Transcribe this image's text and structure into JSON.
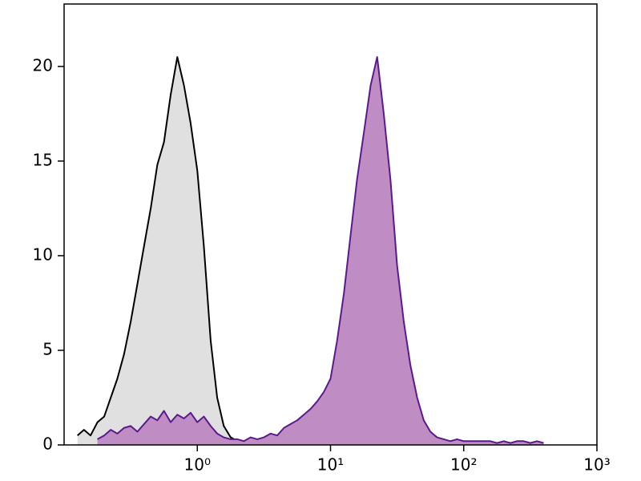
{
  "chart_data": {
    "type": "histogram-line",
    "x": [
      0.126,
      0.141,
      0.158,
      0.178,
      0.2,
      0.224,
      0.251,
      0.282,
      0.316,
      0.355,
      0.398,
      0.447,
      0.501,
      0.562,
      0.631,
      0.708,
      0.794,
      0.891,
      1,
      1.12,
      1.26,
      1.41,
      1.58,
      1.78,
      2,
      2.24,
      2.51,
      2.82,
      3.16,
      3.55,
      3.98,
      4.47,
      5.01,
      5.62,
      6.31,
      7.08,
      7.94,
      8.91,
      10,
      11.2,
      12.6,
      14.1,
      15.8,
      17.8,
      20,
      22.4,
      25.1,
      28.2,
      31.6,
      35.5,
      39.8,
      44.7,
      50.1,
      56.2,
      63.1,
      70.8,
      79.4,
      89.1,
      100,
      112,
      126,
      141,
      158,
      178,
      200,
      224,
      251,
      282,
      316,
      355,
      398
    ],
    "series": [
      {
        "color": "#000000",
        "fill": "#e0e0e0",
        "values": [
          0.5,
          0.8,
          0.5,
          1.2,
          1.5,
          2.5,
          3.5,
          4.8,
          6.5,
          8.5,
          10.5,
          12.5,
          14.8,
          16,
          18.5,
          20.5,
          19,
          17,
          14.5,
          10.5,
          5.5,
          2.5,
          1,
          0.4,
          0.2,
          null,
          null,
          null,
          null,
          null,
          null,
          null,
          null,
          null,
          null,
          null,
          null,
          null,
          null,
          null,
          null,
          null,
          null,
          null,
          null,
          null,
          null,
          null,
          null,
          null,
          null,
          null,
          null,
          null,
          null,
          null,
          null,
          null,
          null,
          null,
          null,
          null,
          null,
          null,
          null,
          null,
          null,
          null,
          null,
          null,
          null
        ]
      },
      {
        "color": "#5b1a8c",
        "fill": "#c08cc4",
        "values": [
          null,
          null,
          null,
          0.3,
          0.5,
          0.8,
          0.6,
          0.9,
          1,
          0.7,
          1.1,
          1.5,
          1.3,
          1.8,
          1.2,
          1.6,
          1.4,
          1.7,
          1.2,
          1.5,
          1,
          0.6,
          0.4,
          0.3,
          0.3,
          0.2,
          0.4,
          0.3,
          0.4,
          0.6,
          0.5,
          0.9,
          1.1,
          1.3,
          1.6,
          1.9,
          2.3,
          2.8,
          3.5,
          5.5,
          8,
          11,
          14,
          16.5,
          19,
          20.5,
          17.5,
          14,
          9.5,
          6.5,
          4.2,
          2.5,
          1.3,
          0.7,
          0.4,
          0.3,
          0.2,
          0.3,
          0.2,
          0.2,
          0.2,
          0.2,
          0.2,
          0.1,
          0.2,
          0.1,
          0.2,
          0.2,
          0.1,
          0.2,
          0.1
        ]
      }
    ],
    "xscale": "log",
    "xlim": [
      0.1,
      1000
    ],
    "xticks": [
      {
        "value": 1,
        "label": "10⁰"
      },
      {
        "value": 10,
        "label": "10¹"
      },
      {
        "value": 100,
        "label": "10²"
      },
      {
        "value": 1000,
        "label": "10³"
      }
    ],
    "ylim": [
      0,
      23.3
    ],
    "yticks": [
      0,
      5,
      10,
      15,
      20
    ]
  }
}
